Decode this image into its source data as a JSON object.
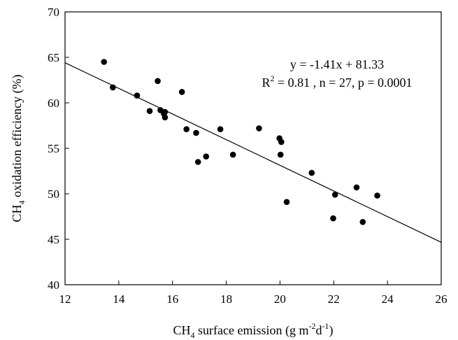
{
  "chart_data": {
    "type": "scatter",
    "xlabel": {
      "pre": "CH",
      "sub": "4",
      "mid": " surface emission (g m",
      "sup1": "-2",
      "mid2": "d",
      "sup2": "-1",
      "post": ")"
    },
    "ylabel": {
      "pre": "CH",
      "sub": "4",
      "post": " oxidation efficiency (%)"
    },
    "xlim": [
      12,
      26
    ],
    "ylim": [
      40,
      70
    ],
    "xticks": [
      12,
      14,
      16,
      18,
      20,
      22,
      24,
      26
    ],
    "yticks": [
      40,
      45,
      50,
      55,
      60,
      65,
      70
    ],
    "annotation": {
      "equation": "y = -1.41x + 81.33",
      "stats_pre": "R",
      "stats_sup": "2",
      "stats_post": " = 0.81 , n = 27, p = 0.0001"
    },
    "regression": {
      "slope": -1.41,
      "intercept": 81.33
    },
    "points": [
      [
        13.45,
        64.5
      ],
      [
        13.78,
        61.7
      ],
      [
        14.68,
        60.8
      ],
      [
        15.15,
        59.1
      ],
      [
        15.45,
        62.4
      ],
      [
        15.55,
        59.2
      ],
      [
        15.68,
        58.8
      ],
      [
        15.72,
        59.0
      ],
      [
        15.72,
        58.4
      ],
      [
        16.35,
        61.2
      ],
      [
        16.52,
        57.1
      ],
      [
        16.88,
        56.7
      ],
      [
        16.95,
        53.5
      ],
      [
        17.25,
        54.1
      ],
      [
        17.78,
        57.1
      ],
      [
        18.25,
        54.3
      ],
      [
        19.22,
        57.2
      ],
      [
        19.98,
        56.1
      ],
      [
        20.05,
        55.7
      ],
      [
        20.02,
        54.3
      ],
      [
        20.25,
        49.1
      ],
      [
        21.18,
        52.3
      ],
      [
        21.98,
        47.3
      ],
      [
        22.05,
        49.9
      ],
      [
        22.85,
        50.7
      ],
      [
        23.08,
        46.9
      ],
      [
        23.62,
        49.8
      ]
    ]
  }
}
